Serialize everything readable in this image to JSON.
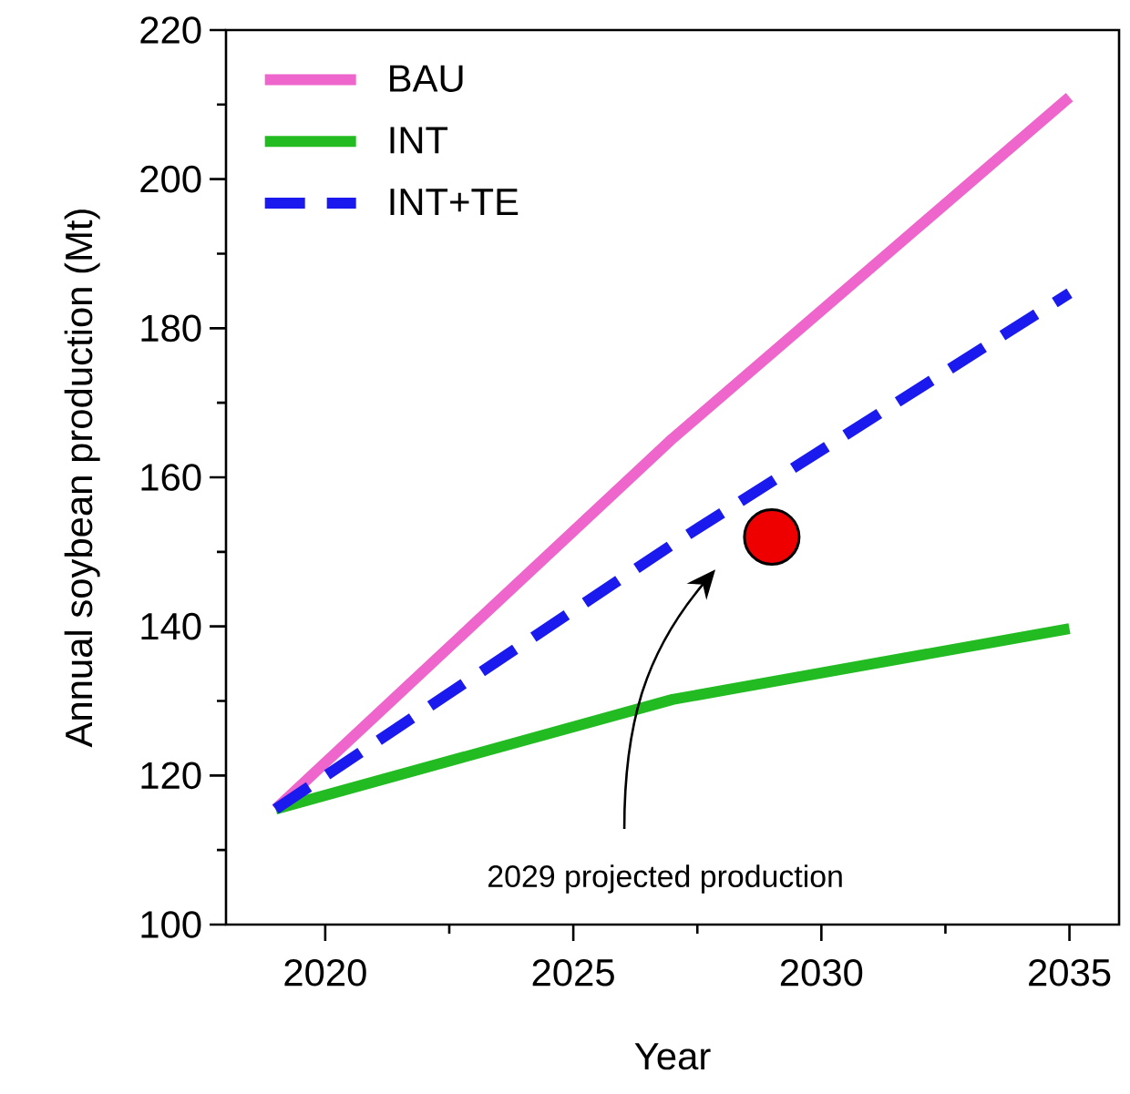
{
  "chart_data": {
    "type": "line",
    "xlabel": "Year",
    "ylabel": "Annual soybean production (Mt)",
    "xlim": [
      2018,
      2036
    ],
    "ylim": [
      100,
      220
    ],
    "xticks": [
      2020,
      {
        "value": 2022.5,
        "label": null
      },
      2025,
      {
        "value": 2027.5,
        "label": null
      },
      2030,
      {
        "value": 2032.5,
        "label": null
      },
      2035
    ],
    "yticks": [
      100,
      {
        "value": 110,
        "label": null
      },
      120,
      {
        "value": 130,
        "label": null
      },
      140,
      {
        "value": 150,
        "label": null
      },
      160,
      {
        "value": 170,
        "label": null
      },
      180,
      {
        "value": 190,
        "label": null
      },
      200,
      {
        "value": 210,
        "label": null
      },
      220
    ],
    "grid": false,
    "legend": "top left",
    "marker": "none",
    "series": [
      {
        "name": "BAU",
        "color": "#ee66cc",
        "line_style": "solid",
        "x": [
          2019,
          2027,
          2035
        ],
        "values": [
          115.5,
          165.2,
          211
        ]
      },
      {
        "name": "INT",
        "color": "#22bb22",
        "line_style": "solid",
        "x": [
          2019,
          2027,
          2035
        ],
        "values": [
          115.5,
          130.2,
          139.7
        ]
      },
      {
        "name": "INT+TE",
        "color": "#1a1aee",
        "line_style": "dashed",
        "x": [
          2019,
          2027,
          2035
        ],
        "values": [
          115.5,
          151,
          184.7
        ]
      },
      {
        "type": "scatter",
        "color": "#ee0000",
        "x": [
          2029
        ],
        "values": [
          152
        ]
      }
    ],
    "annotations": [
      "2029 projected production"
    ]
  }
}
